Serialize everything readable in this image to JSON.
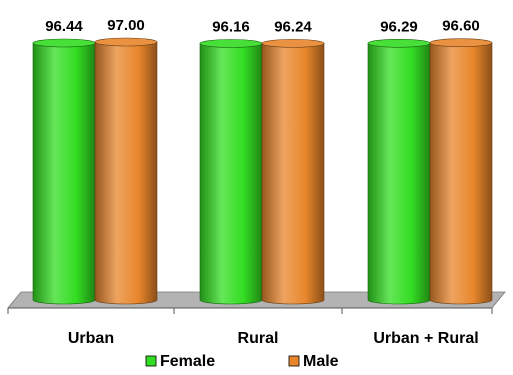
{
  "chart_data": {
    "type": "bar",
    "categories": [
      "Urban",
      "Rural",
      "Urban + Rural"
    ],
    "series": [
      {
        "name": "Female",
        "values": [
          96.44,
          96.16,
          96.29
        ],
        "color": "#33dd22"
      },
      {
        "name": "Male",
        "values": [
          97.0,
          96.24,
          96.6
        ],
        "color": "#e8862c"
      }
    ],
    "data_labels": [
      [
        "96.44",
        "96.16",
        "96.29"
      ],
      [
        "97.00",
        "96.24",
        "96.60"
      ]
    ],
    "bar_style": "3d-cylinder",
    "legend_position": "bottom",
    "grid": false
  }
}
